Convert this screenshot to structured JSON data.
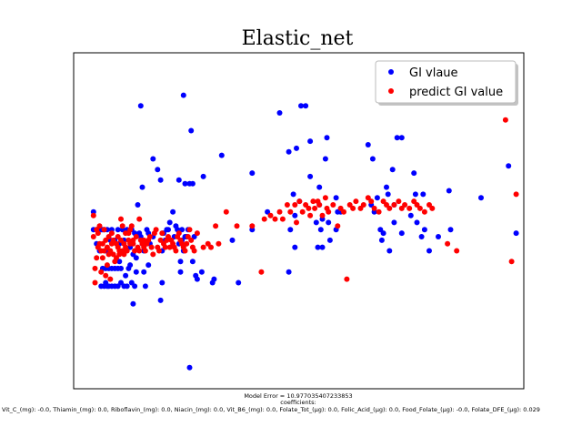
{
  "chart_data": {
    "type": "scatter",
    "title": "Elastic_net",
    "xlabel": "",
    "ylabel": "",
    "xlim": [
      -5,
      290
    ],
    "ylim": [
      5,
      100
    ],
    "grid": false,
    "legend_position": "top-right",
    "series": [
      {
        "name": "GI vlaue",
        "color": "#0000ff",
        "points": [
          [
            8,
            55
          ],
          [
            8,
            50
          ],
          [
            10,
            50
          ],
          [
            10,
            46
          ],
          [
            12,
            50
          ],
          [
            12,
            44
          ],
          [
            13,
            50
          ],
          [
            13,
            34
          ],
          [
            14,
            50
          ],
          [
            14,
            39
          ],
          [
            15,
            50
          ],
          [
            15,
            34
          ],
          [
            16,
            44
          ],
          [
            16,
            39
          ],
          [
            16,
            35
          ],
          [
            17,
            34
          ],
          [
            17,
            50
          ],
          [
            18,
            39
          ],
          [
            18,
            34
          ],
          [
            19,
            47
          ],
          [
            20,
            50
          ],
          [
            20,
            39
          ],
          [
            20,
            34
          ],
          [
            22,
            47
          ],
          [
            22,
            39
          ],
          [
            22,
            34
          ],
          [
            24,
            50
          ],
          [
            24,
            39
          ],
          [
            24,
            34
          ],
          [
            25,
            46
          ],
          [
            25,
            41
          ],
          [
            26,
            39
          ],
          [
            26,
            35
          ],
          [
            27,
            50
          ],
          [
            28,
            34
          ],
          [
            28,
            47
          ],
          [
            29,
            37
          ],
          [
            30,
            50
          ],
          [
            30,
            34
          ],
          [
            31,
            39
          ],
          [
            32,
            45
          ],
          [
            32,
            40
          ],
          [
            33,
            35
          ],
          [
            33,
            50
          ],
          [
            34,
            43
          ],
          [
            34,
            29
          ],
          [
            35,
            49
          ],
          [
            35,
            34
          ],
          [
            36,
            42
          ],
          [
            36,
            38
          ],
          [
            37,
            57
          ],
          [
            38,
            49
          ],
          [
            39,
            85
          ],
          [
            39,
            48
          ],
          [
            40,
            62
          ],
          [
            40,
            46
          ],
          [
            41,
            44
          ],
          [
            41,
            38
          ],
          [
            42,
            34
          ],
          [
            43,
            50
          ],
          [
            44,
            49
          ],
          [
            44,
            40
          ],
          [
            45,
            46
          ],
          [
            47,
            70
          ],
          [
            47,
            48
          ],
          [
            50,
            67
          ],
          [
            52,
            64
          ],
          [
            52,
            30
          ],
          [
            53,
            35
          ],
          [
            53,
            44
          ],
          [
            54,
            49
          ],
          [
            55,
            47
          ],
          [
            56,
            50
          ],
          [
            57,
            50
          ],
          [
            58,
            52
          ],
          [
            60,
            55
          ],
          [
            61,
            48
          ],
          [
            62,
            51
          ],
          [
            63,
            50
          ],
          [
            64,
            64
          ],
          [
            64,
            46
          ],
          [
            65,
            38
          ],
          [
            65,
            41
          ],
          [
            66,
            50
          ],
          [
            66,
            47
          ],
          [
            67,
            88
          ],
          [
            67,
            44
          ],
          [
            68,
            63
          ],
          [
            68,
            48
          ],
          [
            69,
            48
          ],
          [
            70,
            50
          ],
          [
            71,
            63
          ],
          [
            71,
            11
          ],
          [
            72,
            78
          ],
          [
            73,
            63
          ],
          [
            73,
            41
          ],
          [
            74,
            48
          ],
          [
            75,
            37
          ],
          [
            76,
            36
          ],
          [
            79,
            38
          ],
          [
            80,
            65
          ],
          [
            86,
            35
          ],
          [
            87,
            36
          ],
          [
            92,
            71
          ],
          [
            99,
            47
          ],
          [
            103,
            35
          ],
          [
            112,
            50
          ],
          [
            112,
            66
          ],
          [
            122,
            55
          ],
          [
            130,
            83
          ],
          [
            136,
            72
          ],
          [
            136,
            38
          ],
          [
            137,
            50
          ],
          [
            139,
            60
          ],
          [
            140,
            54
          ],
          [
            140,
            45
          ],
          [
            141,
            73
          ],
          [
            143,
            58
          ],
          [
            144,
            85
          ],
          [
            147,
            85
          ],
          [
            150,
            75
          ],
          [
            150,
            65
          ],
          [
            154,
            52
          ],
          [
            155,
            45
          ],
          [
            156,
            62
          ],
          [
            156,
            57
          ],
          [
            157,
            50
          ],
          [
            158,
            53
          ],
          [
            158,
            45
          ],
          [
            160,
            70
          ],
          [
            161,
            76
          ],
          [
            162,
            52
          ],
          [
            163,
            47
          ],
          [
            167,
            59
          ],
          [
            167,
            50
          ],
          [
            168,
            55
          ],
          [
            170,
            55
          ],
          [
            188,
            74
          ],
          [
            190,
            57
          ],
          [
            191,
            70
          ],
          [
            192,
            55
          ],
          [
            194,
            59
          ],
          [
            196,
            50
          ],
          [
            197,
            47
          ],
          [
            198,
            49
          ],
          [
            200,
            62
          ],
          [
            201,
            60
          ],
          [
            202,
            44
          ],
          [
            204,
            67
          ],
          [
            205,
            57
          ],
          [
            205,
            52
          ],
          [
            207,
            76
          ],
          [
            210,
            76
          ],
          [
            210,
            49
          ],
          [
            216,
            54
          ],
          [
            218,
            66
          ],
          [
            219,
            60
          ],
          [
            220,
            52
          ],
          [
            223,
            48
          ],
          [
            224,
            60
          ],
          [
            225,
            50
          ],
          [
            228,
            44
          ],
          [
            234,
            48
          ],
          [
            241,
            61
          ],
          [
            242,
            50
          ],
          [
            262,
            59
          ],
          [
            280,
            68
          ],
          [
            285,
            49
          ]
        ]
      },
      {
        "name": "predict GI value",
        "color": "#ff0000",
        "points": [
          [
            8,
            54
          ],
          [
            8,
            48
          ],
          [
            9,
            39
          ],
          [
            9,
            35
          ],
          [
            10,
            42
          ],
          [
            10,
            50
          ],
          [
            11,
            49
          ],
          [
            11,
            45
          ],
          [
            12,
            51
          ],
          [
            12,
            46
          ],
          [
            13,
            44
          ],
          [
            13,
            38
          ],
          [
            14,
            46
          ],
          [
            14,
            42
          ],
          [
            15,
            50
          ],
          [
            15,
            44
          ],
          [
            16,
            37
          ],
          [
            16,
            47
          ],
          [
            17,
            45
          ],
          [
            17,
            40
          ],
          [
            18,
            48
          ],
          [
            18,
            43
          ],
          [
            19,
            44
          ],
          [
            19,
            36
          ],
          [
            20,
            49
          ],
          [
            20,
            46
          ],
          [
            21,
            43
          ],
          [
            21,
            47
          ],
          [
            22,
            41
          ],
          [
            23,
            46
          ],
          [
            23,
            42
          ],
          [
            24,
            48
          ],
          [
            24,
            45
          ],
          [
            25,
            44
          ],
          [
            25,
            43
          ],
          [
            26,
            53
          ],
          [
            26,
            47
          ],
          [
            27,
            44
          ],
          [
            27,
            51
          ],
          [
            28,
            43
          ],
          [
            28,
            46
          ],
          [
            29,
            45
          ],
          [
            29,
            49
          ],
          [
            30,
            44
          ],
          [
            31,
            47
          ],
          [
            31,
            49
          ],
          [
            32,
            50
          ],
          [
            32,
            46
          ],
          [
            33,
            51
          ],
          [
            34,
            46
          ],
          [
            34,
            47
          ],
          [
            35,
            44
          ],
          [
            36,
            48
          ],
          [
            37,
            45
          ],
          [
            38,
            44
          ],
          [
            38,
            53
          ],
          [
            39,
            47
          ],
          [
            40,
            46
          ],
          [
            41,
            45
          ],
          [
            41,
            47
          ],
          [
            42,
            44
          ],
          [
            43,
            46
          ],
          [
            44,
            47
          ],
          [
            45,
            48
          ],
          [
            46,
            45
          ],
          [
            47,
            43
          ],
          [
            48,
            49
          ],
          [
            49,
            50
          ],
          [
            50,
            45
          ],
          [
            51,
            44
          ],
          [
            52,
            47
          ],
          [
            53,
            49
          ],
          [
            54,
            46
          ],
          [
            55,
            45
          ],
          [
            56,
            47
          ],
          [
            57,
            48
          ],
          [
            58,
            45
          ],
          [
            59,
            47
          ],
          [
            60,
            46
          ],
          [
            61,
            45
          ],
          [
            62,
            44
          ],
          [
            63,
            48
          ],
          [
            64,
            49
          ],
          [
            65,
            47
          ],
          [
            66,
            46
          ],
          [
            67,
            45
          ],
          [
            68,
            44
          ],
          [
            69,
            46
          ],
          [
            70,
            48
          ],
          [
            71,
            50
          ],
          [
            72,
            47
          ],
          [
            73,
            45
          ],
          [
            74,
            44
          ],
          [
            76,
            49
          ],
          [
            80,
            45
          ],
          [
            83,
            46
          ],
          [
            85,
            45
          ],
          [
            88,
            51
          ],
          [
            90,
            46
          ],
          [
            95,
            55
          ],
          [
            102,
            51
          ],
          [
            112,
            51
          ],
          [
            118,
            38
          ],
          [
            120,
            53
          ],
          [
            124,
            54
          ],
          [
            127,
            53
          ],
          [
            130,
            55
          ],
          [
            132,
            53
          ],
          [
            135,
            57
          ],
          [
            137,
            55
          ],
          [
            140,
            57
          ],
          [
            141,
            52
          ],
          [
            143,
            58
          ],
          [
            145,
            55
          ],
          [
            147,
            57
          ],
          [
            149,
            56
          ],
          [
            150,
            54
          ],
          [
            152,
            58
          ],
          [
            153,
            56
          ],
          [
            155,
            58
          ],
          [
            156,
            57
          ],
          [
            158,
            54
          ],
          [
            160,
            59
          ],
          [
            161,
            56
          ],
          [
            162,
            55
          ],
          [
            165,
            57
          ],
          [
            168,
            51
          ],
          [
            170,
            56
          ],
          [
            172,
            55
          ],
          [
            174,
            36
          ],
          [
            176,
            57
          ],
          [
            178,
            56
          ],
          [
            180,
            58
          ],
          [
            183,
            56
          ],
          [
            185,
            57
          ],
          [
            188,
            59
          ],
          [
            190,
            58
          ],
          [
            192,
            56
          ],
          [
            195,
            55
          ],
          [
            198,
            58
          ],
          [
            200,
            57
          ],
          [
            202,
            56
          ],
          [
            205,
            57
          ],
          [
            208,
            58
          ],
          [
            210,
            56
          ],
          [
            212,
            57
          ],
          [
            215,
            56
          ],
          [
            218,
            58
          ],
          [
            220,
            57
          ],
          [
            222,
            56
          ],
          [
            225,
            55
          ],
          [
            228,
            57
          ],
          [
            230,
            56
          ],
          [
            240,
            46
          ],
          [
            246,
            44
          ],
          [
            278,
            81
          ],
          [
            282,
            41
          ],
          [
            285,
            60
          ]
        ]
      }
    ],
    "annotations": [
      "Model Error = 10.977035407233853",
      "coefficients:",
      "Vit_C_(mg): -0.0, Thiamin_(mg): 0.0, Riboflavin_(mg): 0.0, Niacin_(mg): 0.0, Vit_B6_(mg): 0.0, Folate_Tot_(µg): 0.0, Folic_Acid_(µg): 0.0, Food_Folate_(µg): -0.0, Folate_DFE_(µg): 0.029"
    ]
  }
}
